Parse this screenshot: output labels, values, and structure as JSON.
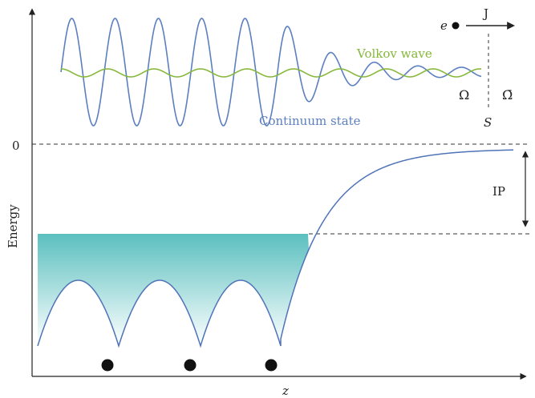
{
  "labels": {
    "y_axis": "Energy",
    "x_axis": "z",
    "zero": "0",
    "ip": "IP",
    "electron": "e",
    "current": "J",
    "volkov": "Volkov wave",
    "continuum": "Continuum state",
    "omega": "Ω",
    "omega_bar": "Ω̄",
    "surface": "S"
  },
  "colors": {
    "continuum": "#5b7fc0",
    "volkov": "#86b83a",
    "well_fill": "#5bbfbf",
    "potential": "#4f73b8",
    "dashed": "#333333",
    "axis": "#222222"
  },
  "ions": {
    "count": 3
  }
}
